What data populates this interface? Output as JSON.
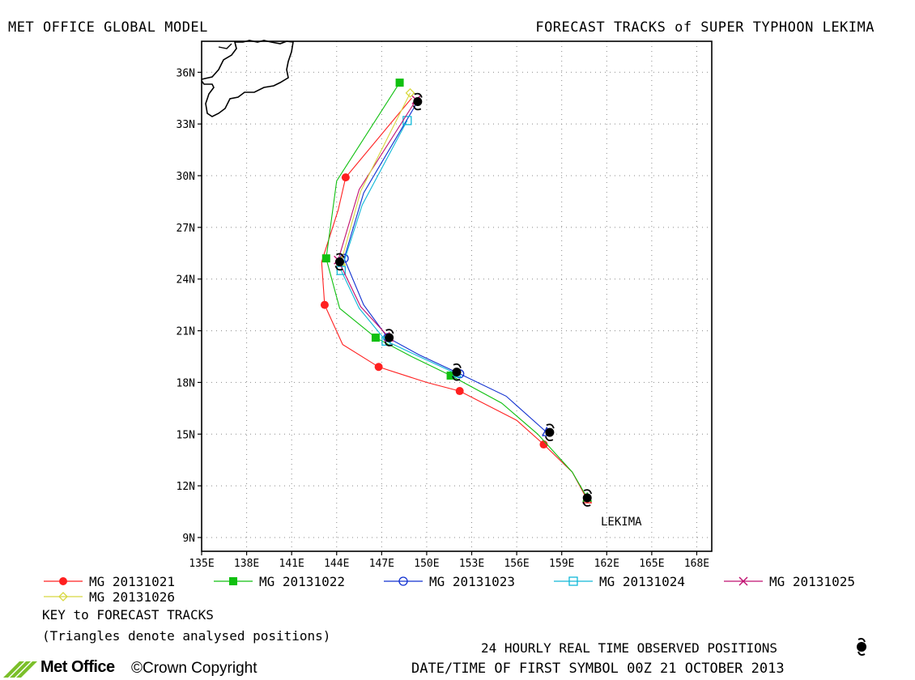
{
  "header": {
    "left_title": "MET OFFICE GLOBAL MODEL",
    "right_title": "FORECAST TRACKS of SUPER TYPHOON LEKIMA"
  },
  "storm_label": "LEKIMA",
  "chart_data": {
    "type": "map-tracks",
    "x_ticks": [
      "135E",
      "138E",
      "141E",
      "144E",
      "147E",
      "150E",
      "153E",
      "156E",
      "159E",
      "162E",
      "165E",
      "168E"
    ],
    "y_ticks": [
      "36N",
      "33N",
      "30N",
      "27N",
      "24N",
      "21N",
      "18N",
      "15N",
      "12N",
      "9N"
    ],
    "lon_range": [
      135,
      169
    ],
    "lat_range": [
      8.2,
      37.8
    ],
    "grid": true,
    "observed": [
      {
        "lon": 160.7,
        "lat": 11.3
      },
      {
        "lon": 158.2,
        "lat": 15.1
      },
      {
        "lon": 152.0,
        "lat": 18.6
      },
      {
        "lon": 147.5,
        "lat": 20.6
      },
      {
        "lon": 144.2,
        "lat": 25.0
      },
      {
        "lon": 149.4,
        "lat": 34.3
      }
    ],
    "series": [
      {
        "name": "MG 20131021",
        "color": "#ff2020",
        "marker": "filled-circle",
        "points": [
          {
            "lon": 160.7,
            "lat": 11.2
          },
          {
            "lon": 159.7,
            "lat": 12.8
          },
          {
            "lon": 157.8,
            "lat": 14.4
          },
          {
            "lon": 156.0,
            "lat": 15.8
          },
          {
            "lon": 152.2,
            "lat": 17.5
          },
          {
            "lon": 150.0,
            "lat": 18.0
          },
          {
            "lon": 146.8,
            "lat": 18.9
          },
          {
            "lon": 144.4,
            "lat": 20.2
          },
          {
            "lon": 143.2,
            "lat": 22.5
          },
          {
            "lon": 143.0,
            "lat": 25.0
          },
          {
            "lon": 144.1,
            "lat": 28.0
          },
          {
            "lon": 144.6,
            "lat": 29.9
          },
          {
            "lon": 149.0,
            "lat": 34.5
          }
        ],
        "marker_idx": [
          2,
          4,
          6,
          8,
          11
        ]
      },
      {
        "name": "MG 20131022",
        "color": "#10c010",
        "marker": "filled-square",
        "points": [
          {
            "lon": 160.7,
            "lat": 11.3
          },
          {
            "lon": 159.7,
            "lat": 12.8
          },
          {
            "lon": 157.4,
            "lat": 15.0
          },
          {
            "lon": 155.0,
            "lat": 16.8
          },
          {
            "lon": 151.6,
            "lat": 18.4
          },
          {
            "lon": 149.0,
            "lat": 19.5
          },
          {
            "lon": 146.6,
            "lat": 20.6
          },
          {
            "lon": 144.2,
            "lat": 22.3
          },
          {
            "lon": 143.3,
            "lat": 25.2
          },
          {
            "lon": 144.0,
            "lat": 29.7
          },
          {
            "lon": 148.2,
            "lat": 35.4
          }
        ],
        "marker_idx": [
          4,
          6,
          8,
          10
        ]
      },
      {
        "name": "MG 20131023",
        "color": "#1030d0",
        "marker": "open-circle",
        "points": [
          {
            "lon": 158.0,
            "lat": 15.1
          },
          {
            "lon": 155.3,
            "lat": 17.2
          },
          {
            "lon": 152.2,
            "lat": 18.5
          },
          {
            "lon": 149.5,
            "lat": 19.6
          },
          {
            "lon": 147.4,
            "lat": 20.6
          },
          {
            "lon": 145.8,
            "lat": 22.5
          },
          {
            "lon": 144.5,
            "lat": 25.2
          },
          {
            "lon": 145.8,
            "lat": 29.0
          },
          {
            "lon": 149.4,
            "lat": 34.3
          }
        ],
        "marker_idx": [
          2,
          4,
          6
        ]
      },
      {
        "name": "MG 20131024",
        "color": "#10b8d8",
        "marker": "open-square",
        "points": [
          {
            "lon": 152.0,
            "lat": 18.5
          },
          {
            "lon": 149.5,
            "lat": 19.5
          },
          {
            "lon": 147.3,
            "lat": 20.4
          },
          {
            "lon": 145.5,
            "lat": 22.3
          },
          {
            "lon": 144.3,
            "lat": 24.5
          },
          {
            "lon": 145.7,
            "lat": 28.3
          },
          {
            "lon": 148.7,
            "lat": 33.2
          }
        ],
        "marker_idx": [
          2,
          4,
          6
        ]
      },
      {
        "name": "MG 20131025",
        "color": "#c01070",
        "marker": "x",
        "points": [
          {
            "lon": 147.5,
            "lat": 20.6
          },
          {
            "lon": 145.6,
            "lat": 22.4
          },
          {
            "lon": 144.1,
            "lat": 25.1
          },
          {
            "lon": 145.5,
            "lat": 29.2
          },
          {
            "lon": 149.3,
            "lat": 34.4
          }
        ],
        "marker_idx": [
          2,
          4
        ]
      },
      {
        "name": "MG 20131026",
        "color": "#d8d840",
        "marker": "open-diamond",
        "points": [
          {
            "lon": 144.3,
            "lat": 25.0
          },
          {
            "lon": 145.6,
            "lat": 29.1
          },
          {
            "lon": 148.9,
            "lat": 34.8
          }
        ],
        "marker_idx": [
          2
        ]
      }
    ]
  },
  "legend_series_labels": [
    "MG 20131021",
    "MG 20131022",
    "MG 20131023",
    "MG 20131024",
    "MG 20131025",
    "MG 20131026"
  ],
  "key_title": "KEY to FORECAST TRACKS",
  "key_note": "(Triangles denote analysed positions)",
  "observed_label": "24 HOURLY REAL TIME OBSERVED POSITIONS",
  "date_label": "DATE/TIME OF FIRST SYMBOL 00Z 21 OCTOBER 2013",
  "logo_text": "Met Office",
  "copyright": "©Crown Copyright"
}
